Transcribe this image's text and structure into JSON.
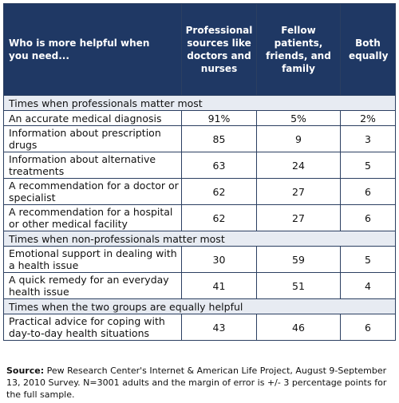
{
  "chart_data": {
    "type": "table",
    "columns": [
      "Who is more helpful when you need...",
      "Professional sources like doctors and nurses",
      "Fellow patients, friends, and family",
      "Both equally"
    ],
    "sections": [
      {
        "title": "Times when professionals matter most",
        "rows": [
          {
            "label": "An accurate medical diagnosis",
            "values": [
              "91%",
              "5%",
              "2%"
            ]
          },
          {
            "label": "Information about prescription drugs",
            "values": [
              "85",
              "9",
              "3"
            ]
          },
          {
            "label": "Information about alternative treatments",
            "values": [
              "63",
              "24",
              "5"
            ]
          },
          {
            "label": "A recommendation for a doctor or specialist",
            "values": [
              "62",
              "27",
              "6"
            ]
          },
          {
            "label": "A recommendation for a hospital or other medical facility",
            "values": [
              "62",
              "27",
              "6"
            ]
          }
        ]
      },
      {
        "title": "Times when non-professionals matter most",
        "rows": [
          {
            "label": "Emotional support in dealing with a health issue",
            "values": [
              "30",
              "59",
              "5"
            ]
          },
          {
            "label": "A quick remedy for an everyday health issue",
            "values": [
              "41",
              "51",
              "4"
            ]
          }
        ]
      },
      {
        "title": "Times when the two groups are equally helpful",
        "rows": [
          {
            "label": "Practical advice for coping with day-to-day health situations",
            "values": [
              "43",
              "46",
              "6"
            ]
          }
        ]
      }
    ],
    "source_label": "Source:",
    "source_text": "Pew Research Center's Internet & American Life Project, August 9-September 13, 2010 Survey. N=3001 adults and the margin of error is +/- 3 percentage points for the full sample."
  },
  "colors": {
    "header_bg": "#1f3864",
    "section_bg": "#e7ebf2",
    "border": "#2b3f61"
  }
}
